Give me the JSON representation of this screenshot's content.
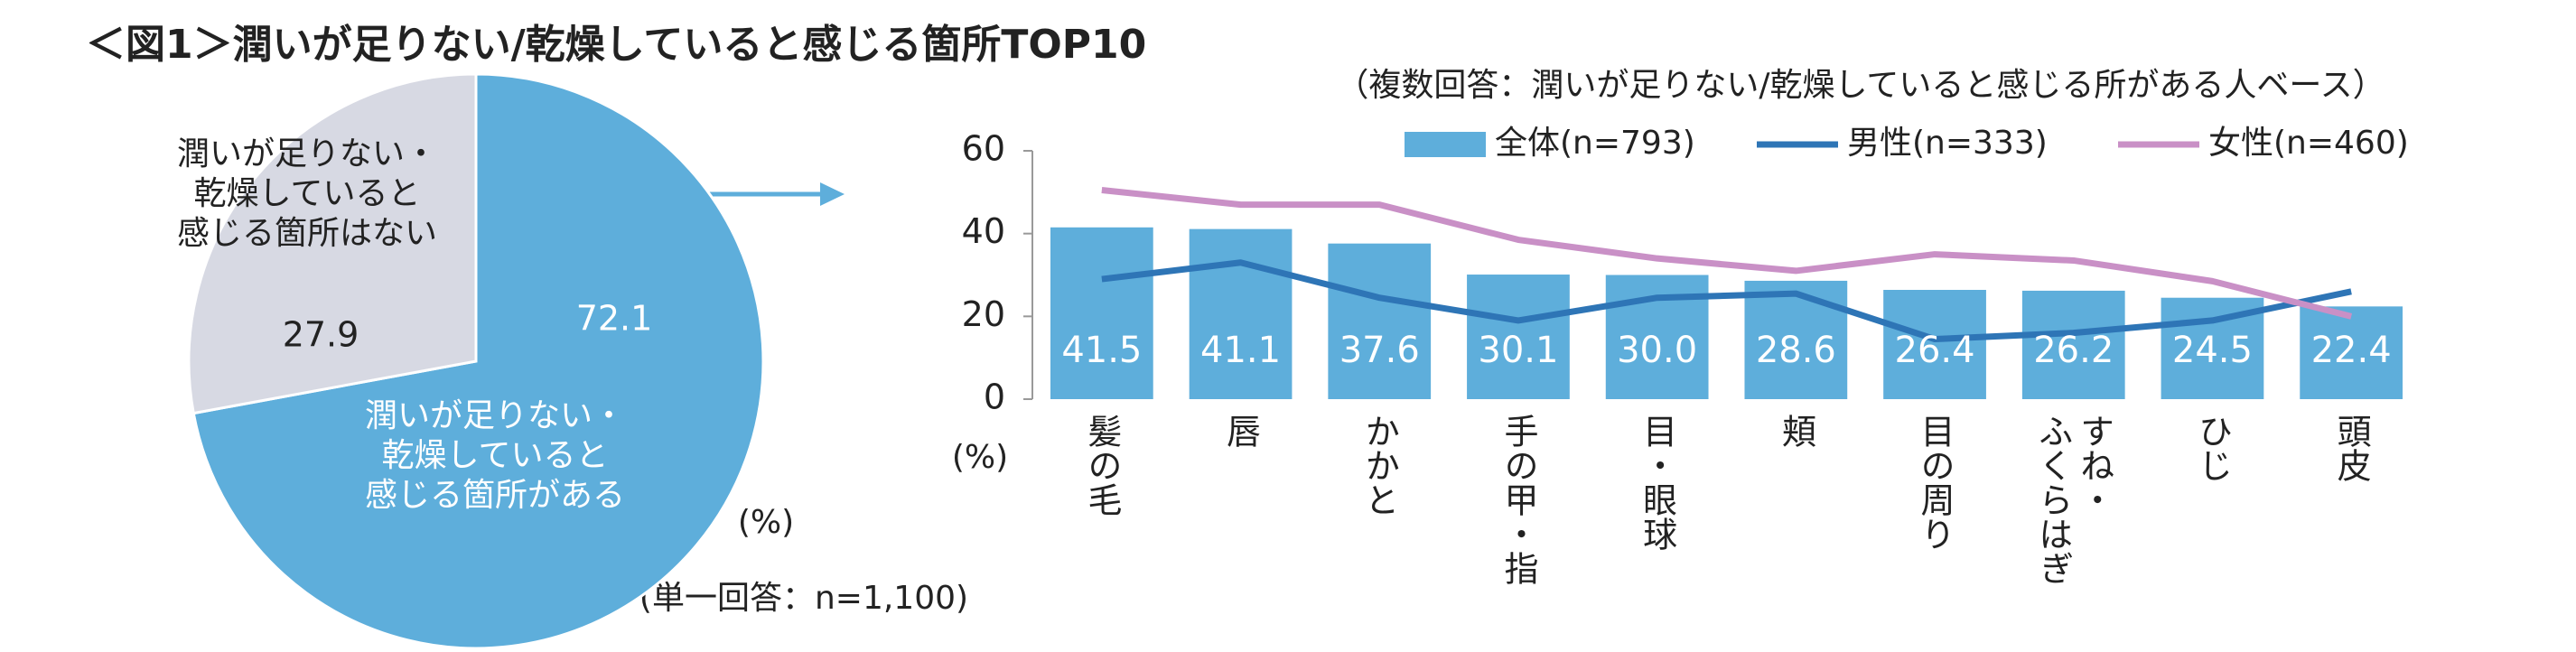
{
  "title": "＜図1＞潤いが足りない/乾燥していると感じる箇所TOP10",
  "chart_data": [
    {
      "type": "pie",
      "categories": [
        "潤いが足りない・\n乾燥していると\n感じる箇所がある",
        "潤いが足りない・\n乾燥していると\n感じる箇所はない"
      ],
      "values": [
        72.1,
        27.9
      ],
      "colors": [
        "#5eaedb",
        "#d7d9e3"
      ],
      "unit_label": "(%)",
      "note": "(単一回答：n=1,100)"
    },
    {
      "type": "bar-line",
      "subtitle": "（複数回答：潤いが足りない/乾燥していると感じる所がある人ベース）",
      "categories": [
        "髪の毛",
        "唇",
        "かかと",
        "手の甲・指",
        "目・眼球",
        "頬",
        "目の周り",
        "すね・\nふくらはぎ",
        "ひじ",
        "頭皮"
      ],
      "series": [
        {
          "name": "全体(n=793)",
          "kind": "bar",
          "color": "#5eaedb",
          "values": [
            41.5,
            41.1,
            37.6,
            30.1,
            30.0,
            28.6,
            26.4,
            26.2,
            24.5,
            22.4
          ],
          "value_labels": [
            "41.5",
            "41.1",
            "37.6",
            "30.1",
            "30.0",
            "28.6",
            "26.4",
            "26.2",
            "24.5",
            "22.4"
          ]
        },
        {
          "name": "男性(n=333)",
          "kind": "line",
          "color": "#2e75b6",
          "values": [
            29,
            33,
            24.5,
            19,
            24.5,
            25.5,
            14.5,
            16,
            19,
            26
          ]
        },
        {
          "name": "女性(n=460)",
          "kind": "line",
          "color": "#c990c6",
          "values": [
            50.5,
            47,
            47,
            38.5,
            34,
            31,
            35,
            33.5,
            28.5,
            20
          ]
        }
      ],
      "ylim": [
        0,
        60
      ],
      "yticks": [
        0,
        20,
        40,
        60
      ],
      "unit_label": "(%)",
      "grid": false
    }
  ]
}
